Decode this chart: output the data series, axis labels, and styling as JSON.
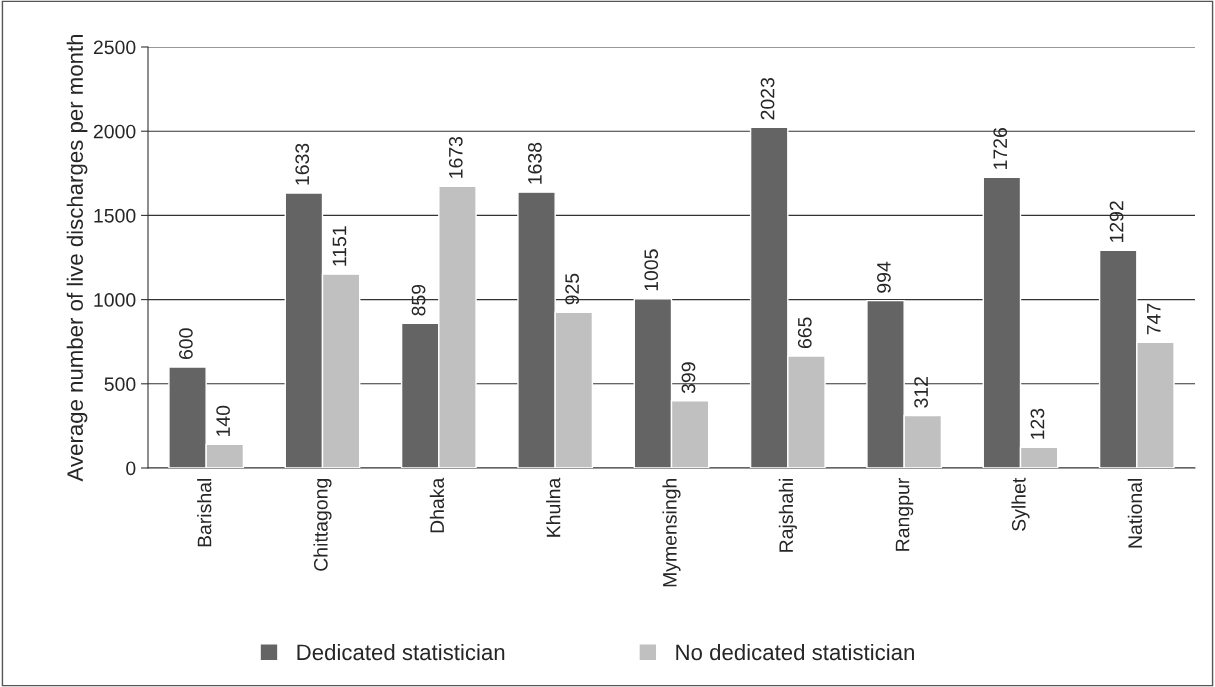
{
  "chart_data": {
    "type": "bar",
    "ylabel": "Average number of live discharges per month",
    "categories": [
      "Barishal",
      "Chittagong",
      "Dhaka",
      "Khulna",
      "Mymensingh",
      "Rajshahi",
      "Rangpur",
      "Sylhet",
      "National"
    ],
    "series": [
      {
        "name": "Dedicated statistician",
        "color": "#646464",
        "values": [
          600,
          1633,
          859,
          1638,
          1005,
          2023,
          994,
          1726,
          1292
        ]
      },
      {
        "name": "No dedicated statistician",
        "color": "#c0c0c0",
        "values": [
          140,
          1151,
          1673,
          925,
          399,
          665,
          312,
          123,
          747
        ]
      }
    ],
    "ylim": [
      0,
      2500
    ],
    "yticks": [
      0,
      500,
      1000,
      1500,
      2000,
      2500
    ],
    "grid": "y",
    "legend": "bottom",
    "data_labels": true
  }
}
